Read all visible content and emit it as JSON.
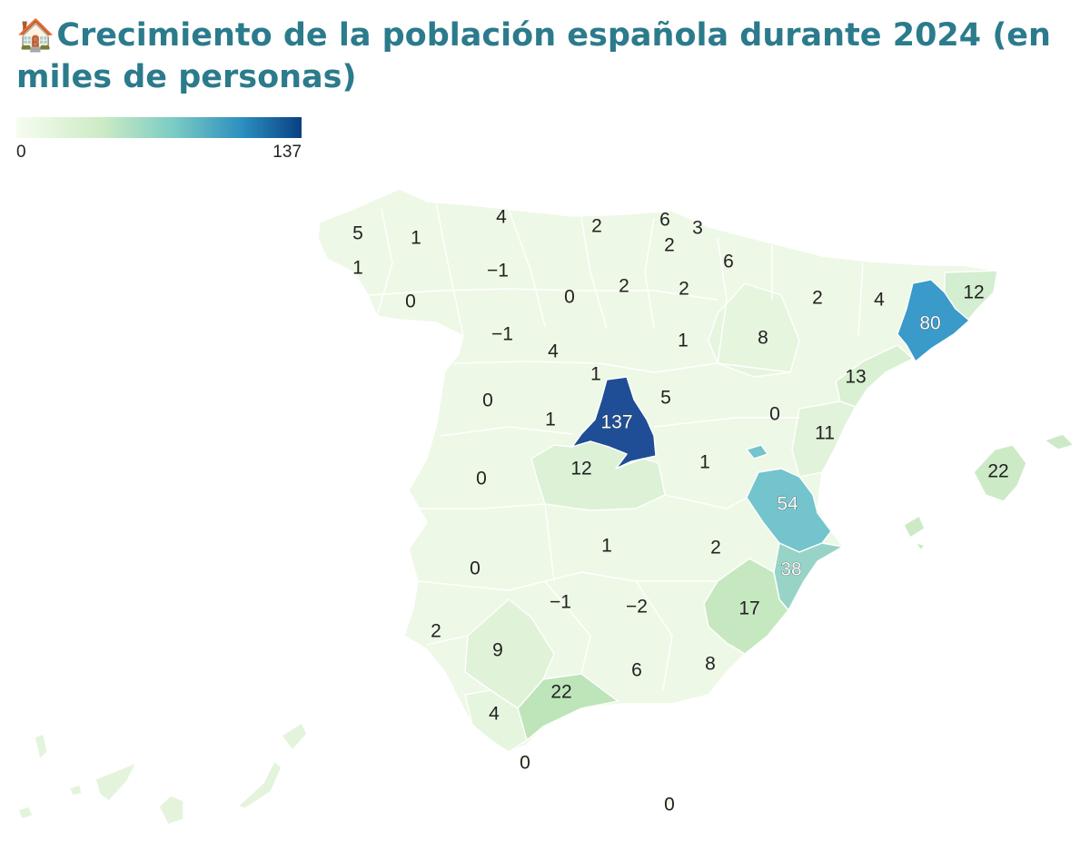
{
  "title": "Crecimiento de la población española durante 2024 (en miles de personas)",
  "title_icon": "🏠",
  "legend": {
    "min": "0",
    "max": "137"
  },
  "colors": {
    "low": "#f0f9e8",
    "mid1": "#ccebc5",
    "mid2": "#7bccc4",
    "mid3": "#43a2ca",
    "high": "#1f4e96"
  },
  "regions": [
    {
      "name": "A Coruña",
      "value": 5
    },
    {
      "name": "Lugo",
      "value": 1
    },
    {
      "name": "Asturias",
      "value": 4
    },
    {
      "name": "Cantabria",
      "value": 2
    },
    {
      "name": "Bizkaia",
      "value": 6
    },
    {
      "name": "Gipuzkoa",
      "value": 3
    },
    {
      "name": "Araba",
      "value": 2
    },
    {
      "name": "Navarra",
      "value": 6
    },
    {
      "name": "Pontevedra",
      "value": 1
    },
    {
      "name": "León",
      "value": -1
    },
    {
      "name": "Ourense",
      "value": 0
    },
    {
      "name": "Palencia",
      "value": 0
    },
    {
      "name": "Burgos",
      "value": 2
    },
    {
      "name": "La Rioja",
      "value": 2
    },
    {
      "name": "Huesca",
      "value": 2
    },
    {
      "name": "Lleida",
      "value": 4
    },
    {
      "name": "Girona",
      "value": 12
    },
    {
      "name": "Barcelona",
      "value": 80
    },
    {
      "name": "Zamora",
      "value": -1
    },
    {
      "name": "Valladolid",
      "value": 4
    },
    {
      "name": "Soria",
      "value": 1
    },
    {
      "name": "Zaragoza",
      "value": 8
    },
    {
      "name": "Segovia",
      "value": 1
    },
    {
      "name": "Tarragona",
      "value": 13
    },
    {
      "name": "Salamanca",
      "value": 0
    },
    {
      "name": "Ávila",
      "value": 1
    },
    {
      "name": "Madrid",
      "value": 137
    },
    {
      "name": "Guadalajara",
      "value": 5
    },
    {
      "name": "Teruel",
      "value": 0
    },
    {
      "name": "Castellón",
      "value": 11
    },
    {
      "name": "Cáceres",
      "value": 0
    },
    {
      "name": "Toledo",
      "value": 12
    },
    {
      "name": "Cuenca",
      "value": 1
    },
    {
      "name": "Valencia",
      "value": 54
    },
    {
      "name": "Baleares",
      "value": 22
    },
    {
      "name": "Badajoz",
      "value": 0
    },
    {
      "name": "Ciudad Real",
      "value": 1
    },
    {
      "name": "Albacete",
      "value": 2
    },
    {
      "name": "Alicante",
      "value": 38
    },
    {
      "name": "Córdoba",
      "value": -1
    },
    {
      "name": "Jaén",
      "value": -2
    },
    {
      "name": "Murcia",
      "value": 17
    },
    {
      "name": "Huelva",
      "value": 2
    },
    {
      "name": "Sevilla",
      "value": 9
    },
    {
      "name": "Granada",
      "value": 6
    },
    {
      "name": "Almería",
      "value": 8
    },
    {
      "name": "Málaga",
      "value": 22
    },
    {
      "name": "Cádiz",
      "value": 4
    },
    {
      "name": "Ceuta",
      "value": 0
    },
    {
      "name": "Melilla",
      "value": 0
    }
  ]
}
